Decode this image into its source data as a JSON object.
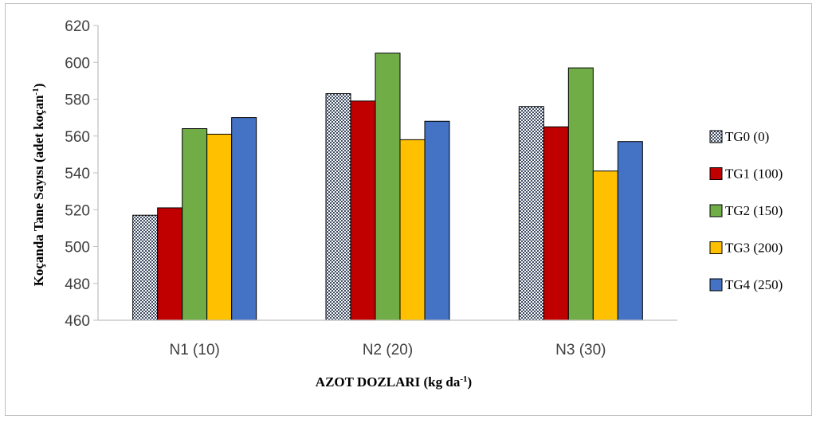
{
  "chart_data": {
    "type": "bar",
    "categories": [
      "N1 (10)",
      "N2 (20)",
      "N3 (30)"
    ],
    "series": [
      {
        "name": "TG0 (0)",
        "values": [
          517,
          583,
          576
        ],
        "color": "#2b3a55",
        "pattern": "dotted"
      },
      {
        "name": "TG1 (100)",
        "values": [
          521,
          579,
          565
        ],
        "color": "#c00000"
      },
      {
        "name": "TG2 (150)",
        "values": [
          564,
          605,
          597
        ],
        "color": "#70ad47"
      },
      {
        "name": "TG3 (200)",
        "values": [
          561,
          558,
          541
        ],
        "color": "#ffc000"
      },
      {
        "name": "TG4 (250)",
        "values": [
          570,
          568,
          557
        ],
        "color": "#4472c4"
      }
    ],
    "yticks": [
      "460",
      "480",
      "500",
      "520",
      "540",
      "560",
      "580",
      "600",
      "620"
    ],
    "ylim": [
      460,
      620
    ],
    "ylabel": {
      "main": "Koçanda Tane Sayısı (adet koçan",
      "sup": "-1",
      "end": ")"
    },
    "xlabel": {
      "main": "AZOT DOZLARI (kg da",
      "sup": "-1",
      "end": ")"
    },
    "legend_position": "right",
    "grid": false
  }
}
